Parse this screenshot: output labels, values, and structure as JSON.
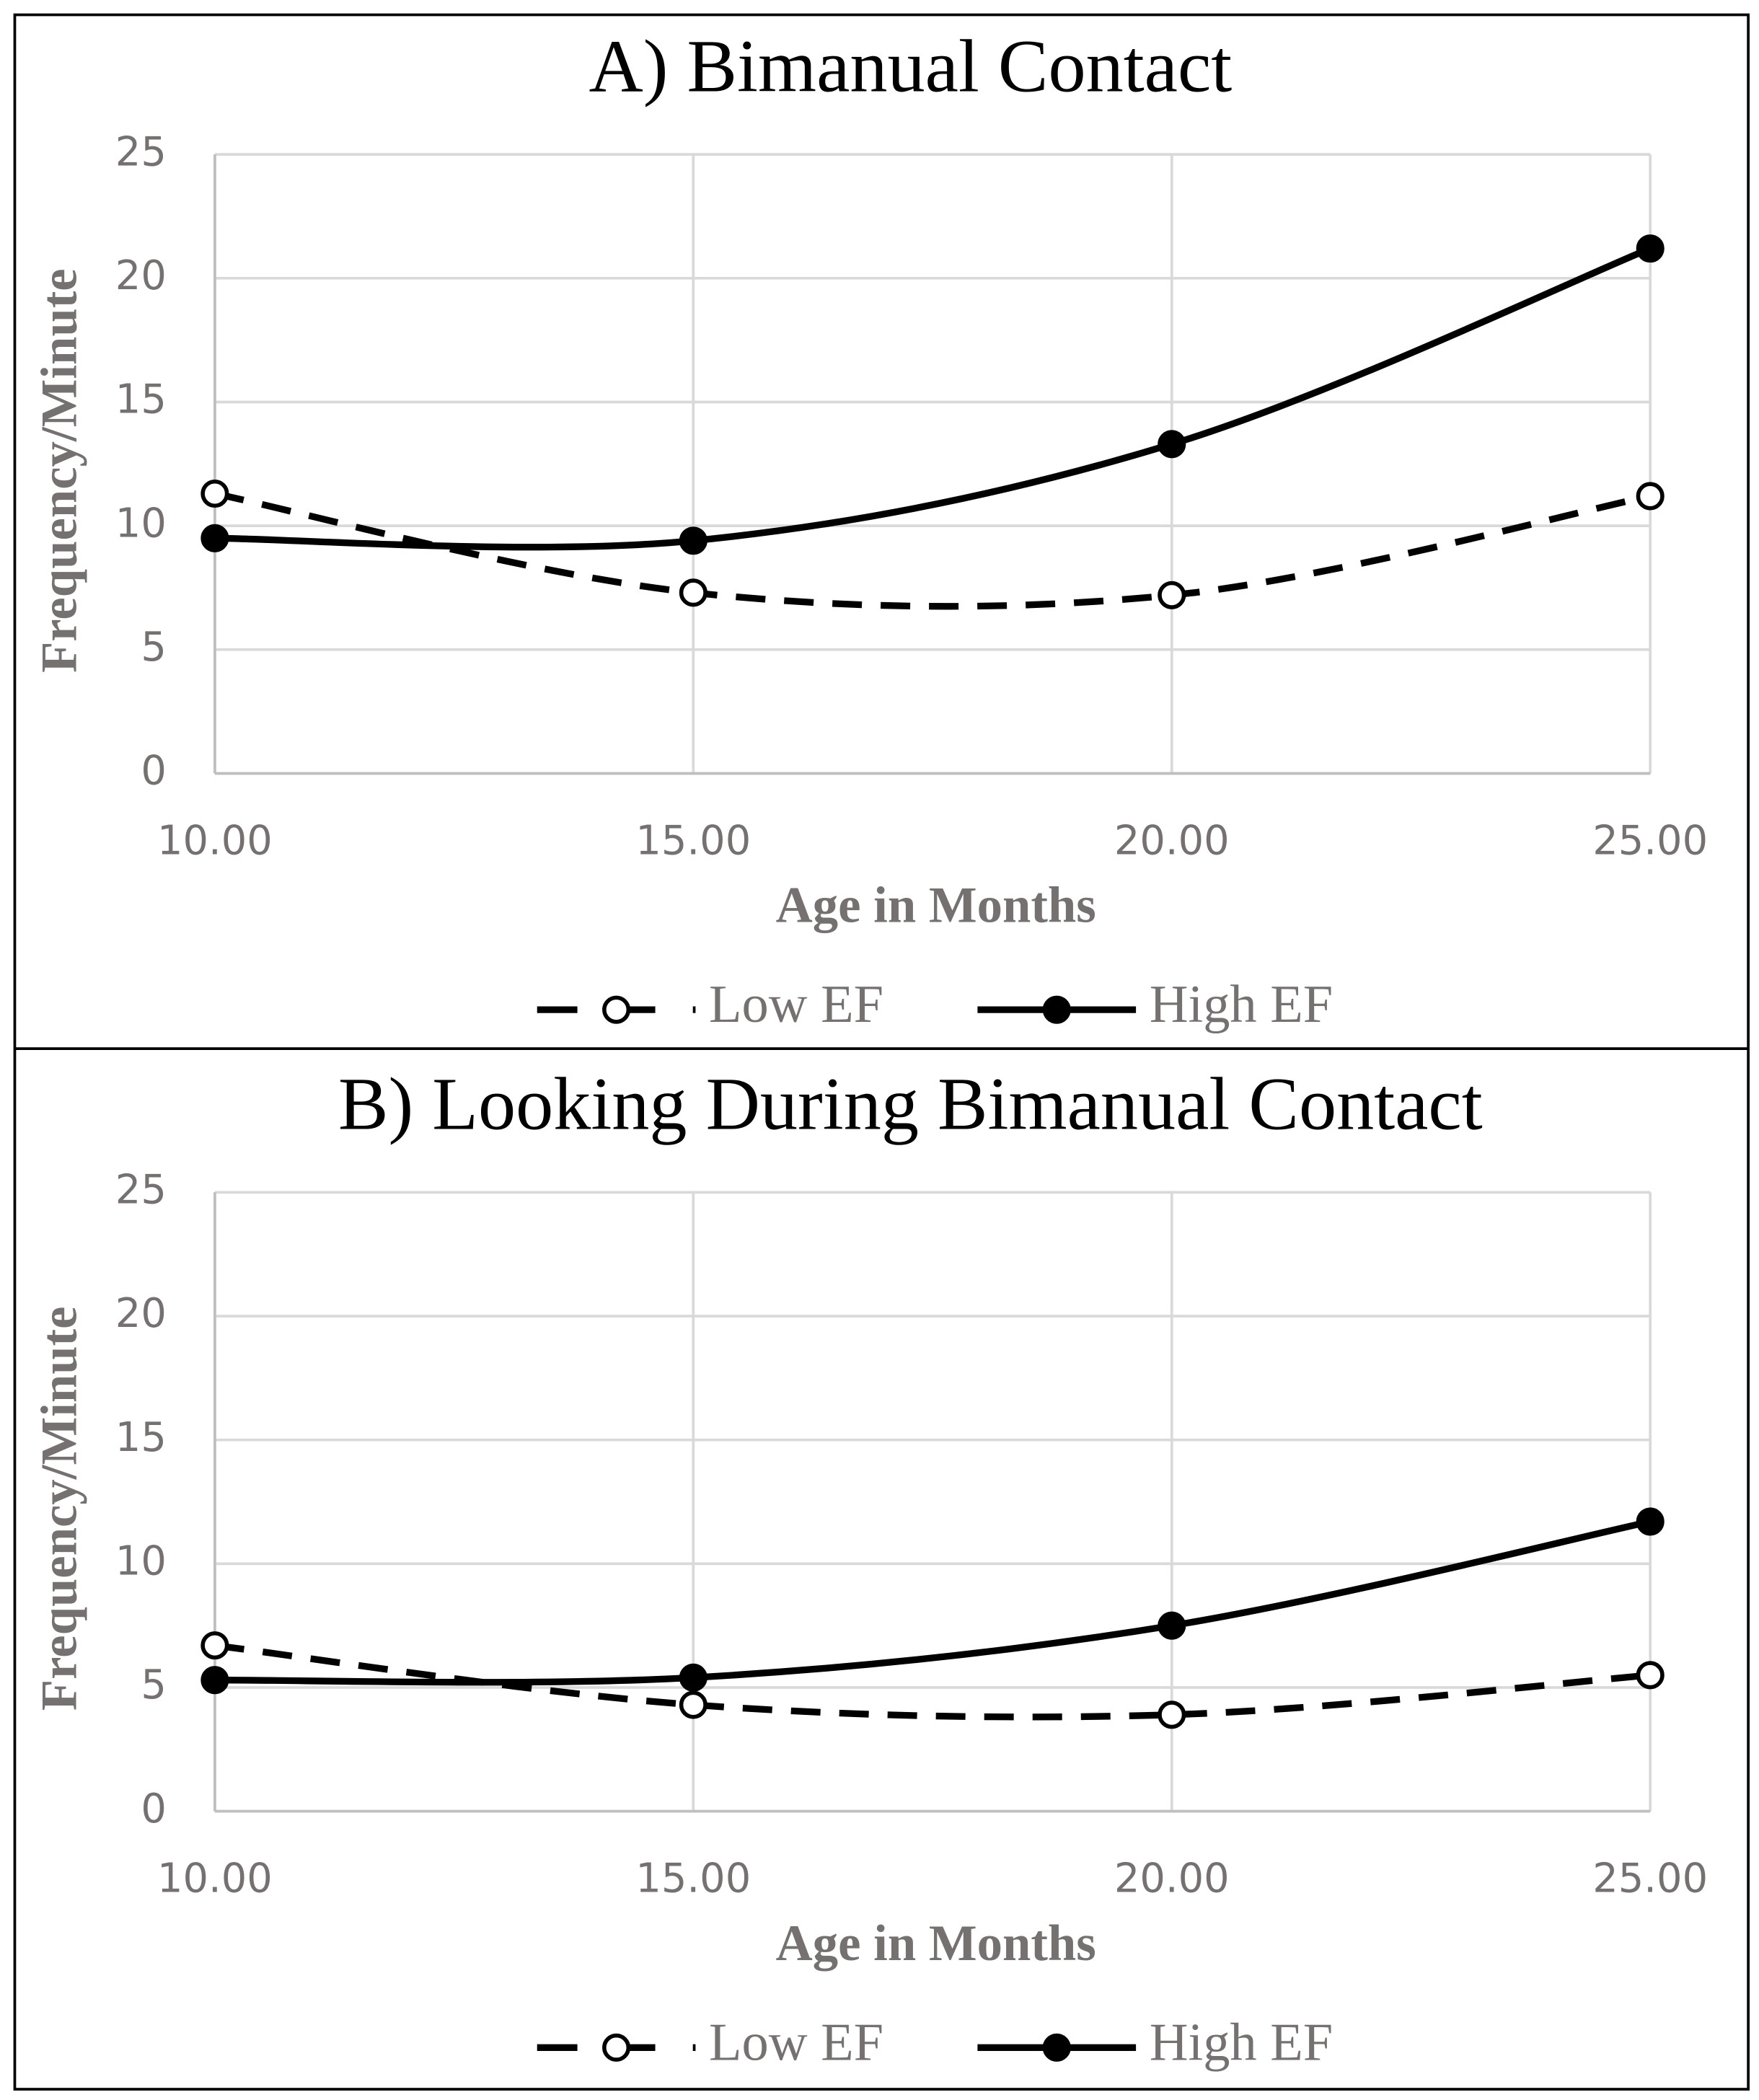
{
  "chart_data": [
    {
      "type": "line",
      "title": "A) Bimanual Contact",
      "x_label": "Age in Months",
      "y_label": "Frequency/Minute",
      "x": [
        10,
        15,
        20,
        25
      ],
      "series": [
        {
          "name": "Low EF",
          "color": "#000000",
          "line_style": "dashed",
          "marker": "open",
          "values": [
            11.3,
            7.3,
            7.2,
            11.2
          ]
        },
        {
          "name": "High EF",
          "color": "#000000",
          "line_style": "solid",
          "marker": "filled",
          "values": [
            9.5,
            9.4,
            13.3,
            21.2
          ]
        }
      ],
      "xlim": [
        10,
        25
      ],
      "ylim": [
        0,
        25
      ],
      "xticks": [
        {
          "value": 10,
          "label": "10.00"
        },
        {
          "value": 15,
          "label": "15.00"
        },
        {
          "value": 20,
          "label": "20.00"
        },
        {
          "value": 25,
          "label": "25.00"
        }
      ],
      "yticks": [
        0,
        5,
        10,
        15,
        20,
        25
      ],
      "grid": true,
      "smooth": true,
      "legend": "bottom"
    },
    {
      "type": "line",
      "title": "B) Looking During Bimanual Contact",
      "x_label": "Age in Months",
      "y_label": "Frequency/Minute",
      "x": [
        10,
        15,
        20,
        25
      ],
      "series": [
        {
          "name": "Low EF",
          "color": "#000000",
          "line_style": "dashed",
          "marker": "open",
          "values": [
            6.7,
            4.3,
            3.9,
            5.5
          ]
        },
        {
          "name": "High EF",
          "color": "#000000",
          "line_style": "solid",
          "marker": "filled",
          "values": [
            5.3,
            5.4,
            7.5,
            11.7
          ]
        }
      ],
      "xlim": [
        10,
        25
      ],
      "ylim": [
        0,
        25
      ],
      "xticks": [
        {
          "value": 10,
          "label": "10.00"
        },
        {
          "value": 15,
          "label": "15.00"
        },
        {
          "value": 20,
          "label": "20.00"
        },
        {
          "value": 25,
          "label": "25.00"
        }
      ],
      "yticks": [
        0,
        5,
        10,
        15,
        20,
        25
      ],
      "grid": true,
      "smooth": true,
      "legend": "bottom"
    }
  ]
}
